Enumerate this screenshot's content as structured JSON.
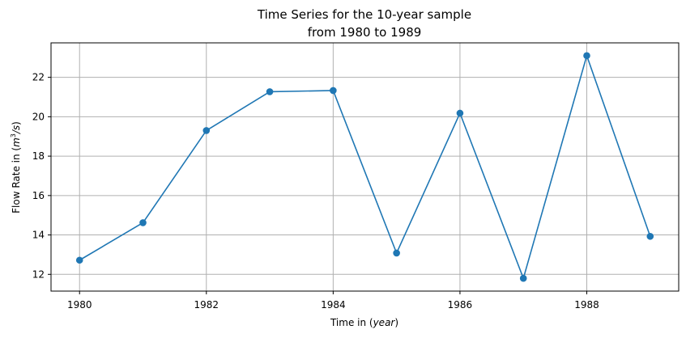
{
  "chart_data": {
    "type": "line",
    "title_line1": "Time Series for the 10-year sample",
    "title_line2": "from 1980 to 1989",
    "xlabel_prefix": "Time in (",
    "xlabel_var": "year",
    "xlabel_suffix": ")",
    "ylabel_prefix": "Flow Rate in (",
    "ylabel_unit_base": "m",
    "ylabel_unit_exp": "3",
    "ylabel_unit_rest": "/s",
    "ylabel_suffix": ")",
    "x": [
      1980,
      1981,
      1982,
      1983,
      1984,
      1985,
      1986,
      1987,
      1988,
      1989
    ],
    "values": [
      12.72,
      14.62,
      19.3,
      21.27,
      21.33,
      13.08,
      20.18,
      11.8,
      23.1,
      13.93
    ],
    "xlim": [
      1979.55,
      1989.45
    ],
    "ylim": [
      11.15,
      23.75
    ],
    "xticks": [
      1980,
      1982,
      1984,
      1986,
      1988
    ],
    "yticks": [
      12,
      14,
      16,
      18,
      20,
      22
    ],
    "grid": true,
    "color": "#1f77b4",
    "marker": "circle"
  }
}
